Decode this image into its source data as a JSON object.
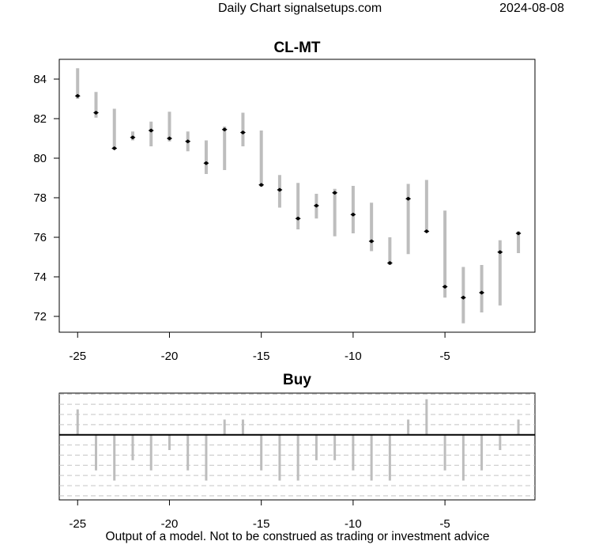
{
  "header": {
    "site": "Daily Chart signalsetups.com",
    "date": "2024-08-08"
  },
  "footer": {
    "disclaimer": "Output of a model. Not to be construed as trading or investment advice"
  },
  "chart_data": [
    {
      "type": "range",
      "title": "CL-MT",
      "xlabel": "",
      "ylabel": "",
      "xlim": [
        -26,
        -0.1
      ],
      "ylim": [
        71.2,
        85.0
      ],
      "xticks": [
        -25,
        -20,
        -15,
        -10,
        -5
      ],
      "yticks": [
        72,
        74,
        76,
        78,
        80,
        82,
        84
      ],
      "grid": false,
      "series": [
        {
          "x": [
            -25,
            -24,
            -23,
            -22,
            -21,
            -20,
            -19,
            -18,
            -17,
            -16,
            -15,
            -14,
            -13,
            -12,
            -11,
            -10,
            -9,
            -8,
            -7,
            -6,
            -5,
            -4,
            -3,
            -2,
            -1
          ],
          "high": [
            84.55,
            83.35,
            82.5,
            81.35,
            81.85,
            82.35,
            81.35,
            80.9,
            81.6,
            82.3,
            81.4,
            79.15,
            78.75,
            78.2,
            78.45,
            78.6,
            77.75,
            76.0,
            78.7,
            78.9,
            77.35,
            74.5,
            74.6,
            75.85,
            76.3
          ],
          "low": [
            83.0,
            82.05,
            80.5,
            80.9,
            80.6,
            80.85,
            80.35,
            79.2,
            79.4,
            80.6,
            78.55,
            77.5,
            76.4,
            76.95,
            76.05,
            76.2,
            75.3,
            74.6,
            75.15,
            76.25,
            72.95,
            71.65,
            72.2,
            72.55,
            75.2
          ],
          "close": [
            83.15,
            82.3,
            80.5,
            81.05,
            81.4,
            81.0,
            80.85,
            79.75,
            81.45,
            81.3,
            78.65,
            78.4,
            76.95,
            77.6,
            78.25,
            77.15,
            75.8,
            74.7,
            77.95,
            76.3,
            73.5,
            72.95,
            73.2,
            75.25,
            76.2
          ]
        }
      ]
    },
    {
      "type": "bar",
      "title": "Buy",
      "xlabel": "",
      "ylabel": "",
      "xlim": [
        -26,
        -0.1
      ],
      "ylim": [
        -6.4,
        4.1
      ],
      "xticks": [
        -25,
        -20,
        -15,
        -10,
        -5
      ],
      "yticks": [],
      "grid": true,
      "x": [
        -25,
        -24,
        -23,
        -22,
        -21,
        -20,
        -19,
        -18,
        -17,
        -16,
        -15,
        -14,
        -13,
        -12,
        -11,
        -10,
        -9,
        -8,
        -7,
        -6,
        -5,
        -4,
        -3,
        -2,
        -1
      ],
      "values": [
        2.5,
        -3.5,
        -4.5,
        -2.5,
        -3.5,
        -1.5,
        -3.5,
        -4.5,
        1.5,
        1.5,
        -3.5,
        -4.5,
        -4.5,
        -2.5,
        -2.5,
        -3.5,
        -4.5,
        -4.5,
        1.5,
        3.5,
        -3.5,
        -4.5,
        -3.5,
        -1.5,
        1.5
      ]
    }
  ]
}
